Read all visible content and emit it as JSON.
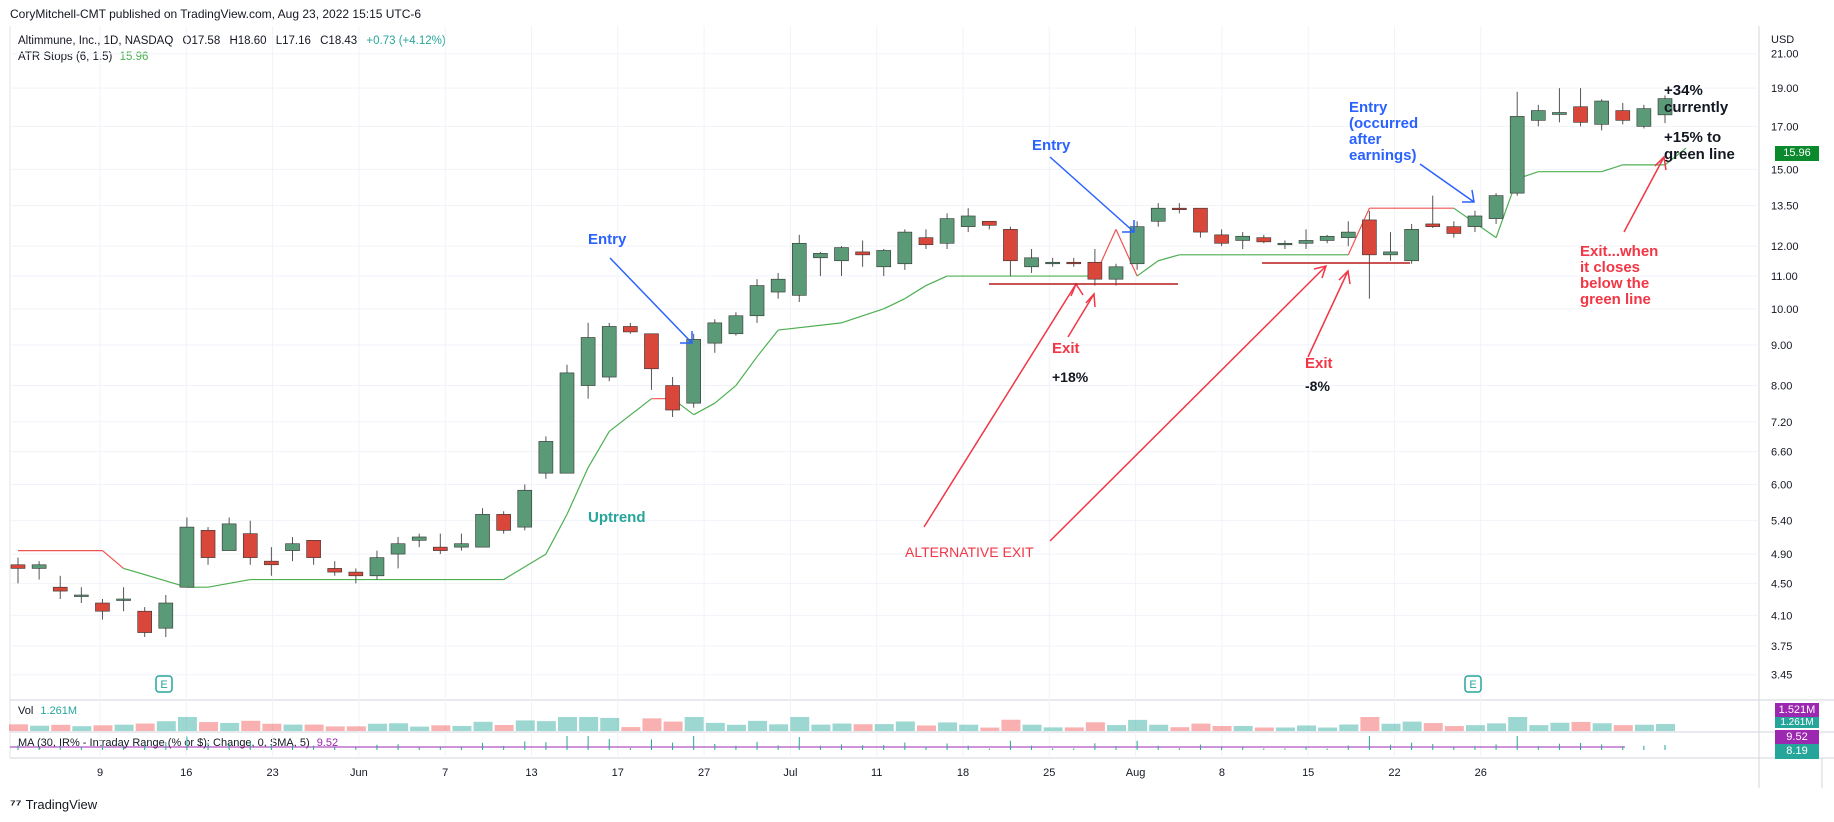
{
  "header": {
    "published": "CoryMitchell-CMT published on TradingView.com, Aug 23, 2022 15:15 UTC-6",
    "symbol_line": "Altimmune, Inc., 1D, NASDAQ",
    "o": "O17.58",
    "h": "H18.60",
    "l": "L17.16",
    "c": "C18.43",
    "change": "+0.73 (+4.12%)",
    "atr_label": "ATR Stops (6, 1.5)",
    "atr_value": "15.96"
  },
  "axis": {
    "currency": "USD",
    "price_ticks": [
      "21.00",
      "19.00",
      "17.00",
      "15.00",
      "13.50",
      "12.00",
      "11.00",
      "10.00",
      "9.00",
      "8.00",
      "7.20",
      "6.60",
      "6.00",
      "5.40",
      "4.90",
      "4.50",
      "4.10",
      "3.75",
      "3.45"
    ],
    "date_ticks": [
      "9",
      "16",
      "23",
      "Jun",
      "7",
      "13",
      "17",
      "27",
      "Jul",
      "11",
      "18",
      "25",
      "Aug",
      "8",
      "15",
      "22",
      "26"
    ]
  },
  "tags": {
    "atr": "15.96",
    "vol1": "1.521M",
    "vol2": "1.261M",
    "ma1": "9.52",
    "ma2": "8.19"
  },
  "colors": {
    "up": "#5a9a76",
    "down": "#d9473b",
    "stop_green": "#4caf50",
    "stop_red": "#ef5350",
    "blue_note": "#2962ff",
    "red_note": "#f23645",
    "teal": "#26a69a"
  },
  "volume": {
    "label": "Vol",
    "value": "1.261M"
  },
  "ma": {
    "label": "MA (30, IR% - Intraday Range (% or $): Change, 0, SMA, 5)",
    "value": "9.52"
  },
  "earnings_marker": "E",
  "annotations": {
    "entry1": "Entry",
    "entry2": "Entry",
    "entry3_l1": "Entry",
    "entry3_l2": "(occurred",
    "entry3_l3": "after",
    "entry3_l4": "earnings)",
    "uptrend": "Uptrend",
    "exit1": "Exit",
    "exit1_pct": "+18%",
    "exit2": "Exit",
    "exit2_pct": "-8%",
    "alt_exit": "ALTERNATIVE EXIT",
    "current_l1": "+34%",
    "current_l2": "currently",
    "green_l1": "+15% to",
    "green_l2": "green line",
    "exit_rule_l1": "Exit...when",
    "exit_rule_l2": "it closes",
    "exit_rule_l3": "below the",
    "exit_rule_l4": "green line"
  },
  "footer": {
    "brand": "TradingView"
  },
  "chart_data": {
    "type": "candlestick",
    "symbol": "Altimmune, Inc., 1D, NASDAQ",
    "y_scale": "log",
    "ylim": [
      3.3,
      22.5
    ],
    "candles": [
      {
        "o": 4.75,
        "h": 4.85,
        "l": 4.5,
        "c": 4.7
      },
      {
        "o": 4.7,
        "h": 4.8,
        "l": 4.55,
        "c": 4.75
      },
      {
        "o": 4.45,
        "h": 4.6,
        "l": 4.3,
        "c": 4.4
      },
      {
        "o": 4.35,
        "h": 4.45,
        "l": 4.25,
        "c": 4.35
      },
      {
        "o": 4.25,
        "h": 4.3,
        "l": 4.05,
        "c": 4.15
      },
      {
        "o": 4.3,
        "h": 4.45,
        "l": 4.15,
        "c": 4.3
      },
      {
        "o": 4.15,
        "h": 4.2,
        "l": 3.85,
        "c": 3.9
      },
      {
        "o": 3.95,
        "h": 4.35,
        "l": 3.85,
        "c": 4.25
      },
      {
        "o": 4.45,
        "h": 5.45,
        "l": 4.45,
        "c": 5.3
      },
      {
        "o": 5.25,
        "h": 5.3,
        "l": 4.75,
        "c": 4.85
      },
      {
        "o": 4.95,
        "h": 5.45,
        "l": 4.95,
        "c": 5.35
      },
      {
        "o": 5.2,
        "h": 5.4,
        "l": 4.75,
        "c": 4.85
      },
      {
        "o": 4.8,
        "h": 5.0,
        "l": 4.6,
        "c": 4.75
      },
      {
        "o": 4.95,
        "h": 5.15,
        "l": 4.8,
        "c": 5.05
      },
      {
        "o": 5.1,
        "h": 5.1,
        "l": 4.75,
        "c": 4.85
      },
      {
        "o": 4.7,
        "h": 4.8,
        "l": 4.6,
        "c": 4.65
      },
      {
        "o": 4.65,
        "h": 4.7,
        "l": 4.5,
        "c": 4.6
      },
      {
        "o": 4.6,
        "h": 4.95,
        "l": 4.55,
        "c": 4.85
      },
      {
        "o": 4.9,
        "h": 5.15,
        "l": 4.7,
        "c": 5.05
      },
      {
        "o": 5.1,
        "h": 5.2,
        "l": 5.0,
        "c": 5.15
      },
      {
        "o": 5.0,
        "h": 5.2,
        "l": 4.9,
        "c": 4.95
      },
      {
        "o": 5.0,
        "h": 5.2,
        "l": 4.95,
        "c": 5.05
      },
      {
        "o": 5.0,
        "h": 5.6,
        "l": 5.0,
        "c": 5.5
      },
      {
        "o": 5.5,
        "h": 5.55,
        "l": 5.2,
        "c": 5.25
      },
      {
        "o": 5.3,
        "h": 6.0,
        "l": 5.25,
        "c": 5.9
      },
      {
        "o": 6.2,
        "h": 6.9,
        "l": 6.1,
        "c": 6.8
      },
      {
        "o": 6.2,
        "h": 8.5,
        "l": 6.2,
        "c": 8.3
      },
      {
        "o": 8.0,
        "h": 9.6,
        "l": 7.7,
        "c": 9.2
      },
      {
        "o": 8.2,
        "h": 9.6,
        "l": 8.1,
        "c": 9.5
      },
      {
        "o": 9.5,
        "h": 9.6,
        "l": 9.3,
        "c": 9.35
      },
      {
        "o": 9.3,
        "h": 9.3,
        "l": 7.9,
        "c": 8.4
      },
      {
        "o": 8.0,
        "h": 8.2,
        "l": 7.3,
        "c": 7.45
      },
      {
        "o": 7.6,
        "h": 9.3,
        "l": 7.5,
        "c": 9.15
      },
      {
        "o": 9.05,
        "h": 9.7,
        "l": 8.8,
        "c": 9.6
      },
      {
        "o": 9.3,
        "h": 9.9,
        "l": 9.25,
        "c": 9.8
      },
      {
        "o": 9.8,
        "h": 10.9,
        "l": 9.6,
        "c": 10.7
      },
      {
        "o": 10.5,
        "h": 11.1,
        "l": 10.3,
        "c": 10.9
      },
      {
        "o": 10.4,
        "h": 12.4,
        "l": 10.2,
        "c": 12.1
      },
      {
        "o": 11.6,
        "h": 11.8,
        "l": 11.0,
        "c": 11.75
      },
      {
        "o": 11.5,
        "h": 12.0,
        "l": 11.0,
        "c": 11.95
      },
      {
        "o": 11.8,
        "h": 12.2,
        "l": 11.3,
        "c": 11.7
      },
      {
        "o": 11.3,
        "h": 11.9,
        "l": 11.0,
        "c": 11.85
      },
      {
        "o": 11.4,
        "h": 12.6,
        "l": 11.2,
        "c": 12.5
      },
      {
        "o": 12.3,
        "h": 12.6,
        "l": 11.9,
        "c": 12.05
      },
      {
        "o": 12.1,
        "h": 13.2,
        "l": 11.9,
        "c": 13.0
      },
      {
        "o": 12.7,
        "h": 13.4,
        "l": 12.5,
        "c": 13.1
      },
      {
        "o": 12.9,
        "h": 12.9,
        "l": 12.6,
        "c": 12.75
      },
      {
        "o": 12.6,
        "h": 12.7,
        "l": 11.0,
        "c": 11.5
      },
      {
        "o": 11.3,
        "h": 11.9,
        "l": 11.1,
        "c": 11.6
      },
      {
        "o": 11.4,
        "h": 11.6,
        "l": 11.3,
        "c": 11.45
      },
      {
        "o": 11.45,
        "h": 11.6,
        "l": 11.3,
        "c": 11.4
      },
      {
        "o": 11.45,
        "h": 11.9,
        "l": 10.7,
        "c": 10.9
      },
      {
        "o": 10.9,
        "h": 11.4,
        "l": 10.7,
        "c": 11.3
      },
      {
        "o": 11.4,
        "h": 12.9,
        "l": 11.2,
        "c": 12.7
      },
      {
        "o": 12.9,
        "h": 13.6,
        "l": 12.7,
        "c": 13.4
      },
      {
        "o": 13.4,
        "h": 13.6,
        "l": 13.2,
        "c": 13.35
      },
      {
        "o": 13.4,
        "h": 13.4,
        "l": 12.3,
        "c": 12.5
      },
      {
        "o": 12.4,
        "h": 12.6,
        "l": 12.0,
        "c": 12.1
      },
      {
        "o": 12.2,
        "h": 12.5,
        "l": 11.9,
        "c": 12.35
      },
      {
        "o": 12.3,
        "h": 12.4,
        "l": 12.1,
        "c": 12.15
      },
      {
        "o": 12.05,
        "h": 12.2,
        "l": 11.9,
        "c": 12.1
      },
      {
        "o": 12.1,
        "h": 12.6,
        "l": 11.9,
        "c": 12.2
      },
      {
        "o": 12.2,
        "h": 12.4,
        "l": 12.1,
        "c": 12.35
      },
      {
        "o": 12.3,
        "h": 12.9,
        "l": 12.0,
        "c": 12.5
      },
      {
        "o": 12.95,
        "h": 13.3,
        "l": 10.3,
        "c": 11.7
      },
      {
        "o": 11.7,
        "h": 12.5,
        "l": 11.5,
        "c": 11.8
      },
      {
        "o": 11.5,
        "h": 12.8,
        "l": 11.4,
        "c": 12.6
      },
      {
        "o": 12.8,
        "h": 13.9,
        "l": 12.65,
        "c": 12.7
      },
      {
        "o": 12.7,
        "h": 12.9,
        "l": 12.3,
        "c": 12.45
      },
      {
        "o": 12.7,
        "h": 13.3,
        "l": 12.5,
        "c": 13.1
      },
      {
        "o": 13.0,
        "h": 14.0,
        "l": 12.8,
        "c": 13.9
      },
      {
        "o": 14.0,
        "h": 18.8,
        "l": 13.9,
        "c": 17.5
      },
      {
        "o": 17.3,
        "h": 18.1,
        "l": 17.0,
        "c": 17.8
      },
      {
        "o": 17.6,
        "h": 19.0,
        "l": 17.2,
        "c": 17.7
      },
      {
        "o": 18.0,
        "h": 19.0,
        "l": 17.0,
        "c": 17.2
      },
      {
        "o": 17.1,
        "h": 18.4,
        "l": 16.8,
        "c": 18.3
      },
      {
        "o": 17.8,
        "h": 18.2,
        "l": 17.1,
        "c": 17.3
      },
      {
        "o": 17.0,
        "h": 18.1,
        "l": 16.9,
        "c": 17.9
      },
      {
        "o": 17.58,
        "h": 18.6,
        "l": 17.16,
        "c": 18.43
      }
    ],
    "atr_stop": [
      {
        "i": 0,
        "v": 4.95,
        "side": "red"
      },
      {
        "i": 4,
        "v": 4.95,
        "side": "red"
      },
      {
        "i": 5,
        "v": 4.7,
        "side": "red"
      },
      {
        "i": 8,
        "v": 4.45,
        "side": "green"
      },
      {
        "i": 9,
        "v": 4.45,
        "side": "green"
      },
      {
        "i": 11,
        "v": 4.55,
        "side": "green"
      },
      {
        "i": 23,
        "v": 4.55,
        "side": "green"
      },
      {
        "i": 25,
        "v": 4.9,
        "side": "green"
      },
      {
        "i": 26,
        "v": 5.5,
        "side": "green"
      },
      {
        "i": 27,
        "v": 6.3,
        "side": "green"
      },
      {
        "i": 28,
        "v": 7.0,
        "side": "green"
      },
      {
        "i": 30,
        "v": 7.7,
        "side": "green"
      },
      {
        "i": 31,
        "v": 7.7,
        "side": "red"
      },
      {
        "i": 32,
        "v": 7.35,
        "side": "green"
      },
      {
        "i": 33,
        "v": 7.6,
        "side": "green"
      },
      {
        "i": 34,
        "v": 8.0,
        "side": "green"
      },
      {
        "i": 35,
        "v": 8.7,
        "side": "green"
      },
      {
        "i": 36,
        "v": 9.4,
        "side": "green"
      },
      {
        "i": 39,
        "v": 9.6,
        "side": "green"
      },
      {
        "i": 41,
        "v": 10.0,
        "side": "green"
      },
      {
        "i": 42,
        "v": 10.3,
        "side": "green"
      },
      {
        "i": 43,
        "v": 10.7,
        "side": "green"
      },
      {
        "i": 44,
        "v": 11.0,
        "side": "green"
      },
      {
        "i": 51,
        "v": 11.0,
        "side": "green"
      },
      {
        "i": 52,
        "v": 12.6,
        "side": "red"
      },
      {
        "i": 53,
        "v": 11.0,
        "side": "red"
      },
      {
        "i": 54,
        "v": 11.5,
        "side": "green"
      },
      {
        "i": 55,
        "v": 11.7,
        "side": "green"
      },
      {
        "i": 63,
        "v": 11.7,
        "side": "green"
      },
      {
        "i": 64,
        "v": 13.4,
        "side": "red"
      },
      {
        "i": 68,
        "v": 13.4,
        "side": "red"
      },
      {
        "i": 70,
        "v": 12.3,
        "side": "green"
      },
      {
        "i": 71,
        "v": 14.6,
        "side": "green"
      },
      {
        "i": 72,
        "v": 14.9,
        "side": "green"
      },
      {
        "i": 75,
        "v": 14.9,
        "side": "green"
      },
      {
        "i": 76,
        "v": 15.2,
        "side": "green"
      },
      {
        "i": 78,
        "v": 15.2,
        "side": "green"
      },
      {
        "i": 79,
        "v": 15.96,
        "side": "green"
      }
    ]
  }
}
